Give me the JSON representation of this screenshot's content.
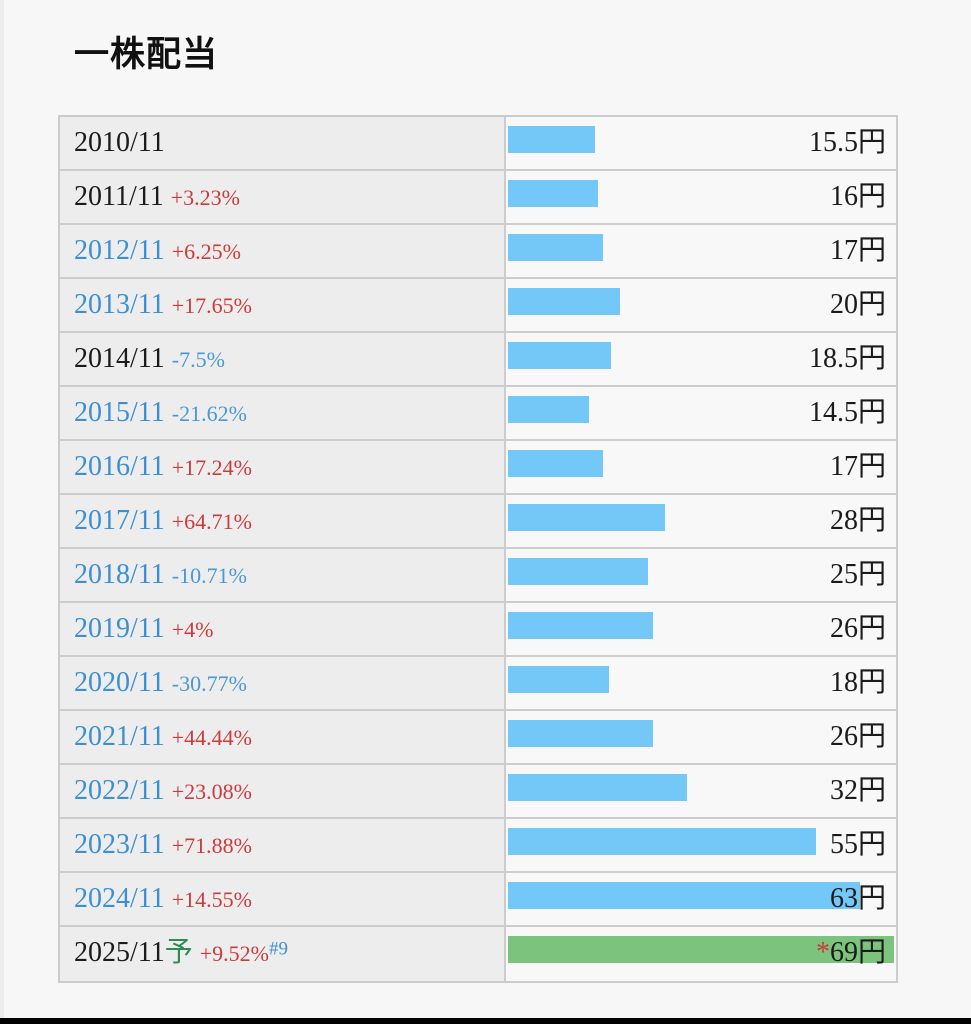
{
  "page": {
    "title": "一株配当",
    "background": "#f7f7f7",
    "bottom_bar_color": "#000000"
  },
  "colors": {
    "bar_blue": "#73c8f8",
    "bar_green_forecast": "#7cc47e",
    "link_blue": "#3d8fd4",
    "positive_red": "#cc3a3c",
    "negative_blue": "#4a97d6",
    "forecast_green_text": "#2f8a57",
    "left_cell_bg": "#ededed",
    "bar_cell_bg": "#f8f8f8",
    "border": "#cccccc"
  },
  "chart_data": {
    "type": "bar",
    "title": "一株配当",
    "orientation": "horizontal",
    "unit": "円",
    "value_axis_max": 69,
    "categories": [
      "2010/11",
      "2011/11",
      "2012/11",
      "2013/11",
      "2014/11",
      "2015/11",
      "2016/11",
      "2017/11",
      "2018/11",
      "2019/11",
      "2020/11",
      "2021/11",
      "2022/11",
      "2023/11",
      "2024/11",
      "2025/11"
    ],
    "values": [
      15.5,
      16,
      17,
      20,
      18.5,
      14.5,
      17,
      28,
      25,
      26,
      18,
      26,
      32,
      55,
      63,
      69
    ],
    "pct_changes": [
      "",
      "+3.23%",
      "+6.25%",
      "+17.65%",
      "-7.5%",
      "-21.62%",
      "+17.24%",
      "+64.71%",
      "-10.71%",
      "+4%",
      "-30.77%",
      "+44.44%",
      "+23.08%",
      "+71.88%",
      "+14.55%",
      "+9.52%"
    ],
    "rows": [
      {
        "year": "2010/11",
        "year_is_link": false,
        "year_suffix": "",
        "pct": "",
        "pct_dir": "",
        "footnote": "",
        "value": 15.5,
        "value_label": "15.5円",
        "value_prefix": "",
        "forecast": false
      },
      {
        "year": "2011/11",
        "year_is_link": false,
        "year_suffix": "",
        "pct": "+3.23%",
        "pct_dir": "up",
        "footnote": "",
        "value": 16,
        "value_label": "16円",
        "value_prefix": "",
        "forecast": false
      },
      {
        "year": "2012/11",
        "year_is_link": true,
        "year_suffix": "",
        "pct": "+6.25%",
        "pct_dir": "up",
        "footnote": "",
        "value": 17,
        "value_label": "17円",
        "value_prefix": "",
        "forecast": false
      },
      {
        "year": "2013/11",
        "year_is_link": true,
        "year_suffix": "",
        "pct": "+17.65%",
        "pct_dir": "up",
        "footnote": "",
        "value": 20,
        "value_label": "20円",
        "value_prefix": "",
        "forecast": false
      },
      {
        "year": "2014/11",
        "year_is_link": false,
        "year_suffix": "",
        "pct": "-7.5%",
        "pct_dir": "down",
        "footnote": "",
        "value": 18.5,
        "value_label": "18.5円",
        "value_prefix": "",
        "forecast": false
      },
      {
        "year": "2015/11",
        "year_is_link": true,
        "year_suffix": "",
        "pct": "-21.62%",
        "pct_dir": "down",
        "footnote": "",
        "value": 14.5,
        "value_label": "14.5円",
        "value_prefix": "",
        "forecast": false
      },
      {
        "year": "2016/11",
        "year_is_link": true,
        "year_suffix": "",
        "pct": "+17.24%",
        "pct_dir": "up",
        "footnote": "",
        "value": 17,
        "value_label": "17円",
        "value_prefix": "",
        "forecast": false
      },
      {
        "year": "2017/11",
        "year_is_link": true,
        "year_suffix": "",
        "pct": "+64.71%",
        "pct_dir": "up",
        "footnote": "",
        "value": 28,
        "value_label": "28円",
        "value_prefix": "",
        "forecast": false
      },
      {
        "year": "2018/11",
        "year_is_link": true,
        "year_suffix": "",
        "pct": "-10.71%",
        "pct_dir": "down",
        "footnote": "",
        "value": 25,
        "value_label": "25円",
        "value_prefix": "",
        "forecast": false
      },
      {
        "year": "2019/11",
        "year_is_link": true,
        "year_suffix": "",
        "pct": "+4%",
        "pct_dir": "up",
        "footnote": "",
        "value": 26,
        "value_label": "26円",
        "value_prefix": "",
        "forecast": false
      },
      {
        "year": "2020/11",
        "year_is_link": true,
        "year_suffix": "",
        "pct": "-30.77%",
        "pct_dir": "down",
        "footnote": "",
        "value": 18,
        "value_label": "18円",
        "value_prefix": "",
        "forecast": false
      },
      {
        "year": "2021/11",
        "year_is_link": true,
        "year_suffix": "",
        "pct": "+44.44%",
        "pct_dir": "up",
        "footnote": "",
        "value": 26,
        "value_label": "26円",
        "value_prefix": "",
        "forecast": false
      },
      {
        "year": "2022/11",
        "year_is_link": true,
        "year_suffix": "",
        "pct": "+23.08%",
        "pct_dir": "up",
        "footnote": "",
        "value": 32,
        "value_label": "32円",
        "value_prefix": "",
        "forecast": false
      },
      {
        "year": "2023/11",
        "year_is_link": true,
        "year_suffix": "",
        "pct": "+71.88%",
        "pct_dir": "up",
        "footnote": "",
        "value": 55,
        "value_label": "55円",
        "value_prefix": "",
        "forecast": false
      },
      {
        "year": "2024/11",
        "year_is_link": true,
        "year_suffix": "",
        "pct": "+14.55%",
        "pct_dir": "up",
        "footnote": "",
        "value": 63,
        "value_label": "63円",
        "value_prefix": "",
        "forecast": false
      },
      {
        "year": "2025/11",
        "year_is_link": false,
        "year_suffix": "予",
        "pct": "+9.52%",
        "pct_dir": "up",
        "footnote": "#9",
        "value": 69,
        "value_label": "69円",
        "value_prefix": "*",
        "forecast": true
      }
    ]
  }
}
